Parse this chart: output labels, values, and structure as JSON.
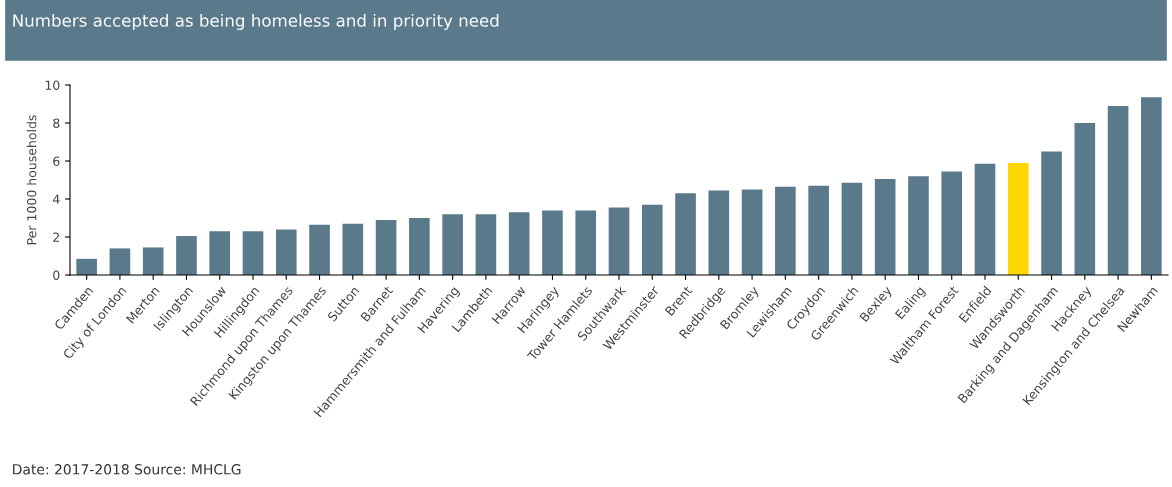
{
  "chart_data": {
    "type": "bar",
    "title": "Numbers accepted as being homeless and in priority need",
    "ylabel": "Per 1000 households",
    "categories": [
      "Camden",
      "City of London",
      "Merton",
      "Islington",
      "Hounslow",
      "Hillingdon",
      "Richmond upon Thames",
      "Kingston upon Thames",
      "Sutton",
      "Barnet",
      "Hammersmith and Fulham",
      "Havering",
      "Lambeth",
      "Harrow",
      "Haringey",
      "Tower Hamlets",
      "Southwark",
      "Westminster",
      "Brent",
      "Redbridge",
      "Bromley",
      "Lewisham",
      "Croydon",
      "Greenwich",
      "Bexley",
      "Ealing",
      "Waltham Forest",
      "Enfield",
      "Wandsworth",
      "Barking and Dagenham",
      "Hackney",
      "Kensington and Chelsea",
      "Newham"
    ],
    "values": [
      0.85,
      1.4,
      1.45,
      2.05,
      2.3,
      2.3,
      2.4,
      2.65,
      2.7,
      2.9,
      3.0,
      3.2,
      3.2,
      3.3,
      3.4,
      3.4,
      3.55,
      3.7,
      4.3,
      4.45,
      4.5,
      4.65,
      4.7,
      4.85,
      5.05,
      5.2,
      5.45,
      5.85,
      5.9,
      6.5,
      8.0,
      8.9,
      9.35
    ],
    "colors": [
      "#5a7a8c",
      "#5a7a8c",
      "#5a7a8c",
      "#5a7a8c",
      "#5a7a8c",
      "#5a7a8c",
      "#5a7a8c",
      "#5a7a8c",
      "#5a7a8c",
      "#5a7a8c",
      "#5a7a8c",
      "#5a7a8c",
      "#5a7a8c",
      "#5a7a8c",
      "#5a7a8c",
      "#5a7a8c",
      "#5a7a8c",
      "#5a7a8c",
      "#5a7a8c",
      "#5a7a8c",
      "#5a7a8c",
      "#5a7a8c",
      "#5a7a8c",
      "#5a7a8c",
      "#5a7a8c",
      "#5a7a8c",
      "#5a7a8c",
      "#5a7a8c",
      "#ffd700",
      "#5a7a8c",
      "#5a7a8c",
      "#5a7a8c",
      "#5a7a8c"
    ],
    "ylim": [
      0,
      10
    ],
    "yticks": [
      0,
      2,
      4,
      6,
      8,
      10
    ],
    "grid": false,
    "annotations": [
      "Date: 2017-2018 Source: MHCLG"
    ]
  }
}
